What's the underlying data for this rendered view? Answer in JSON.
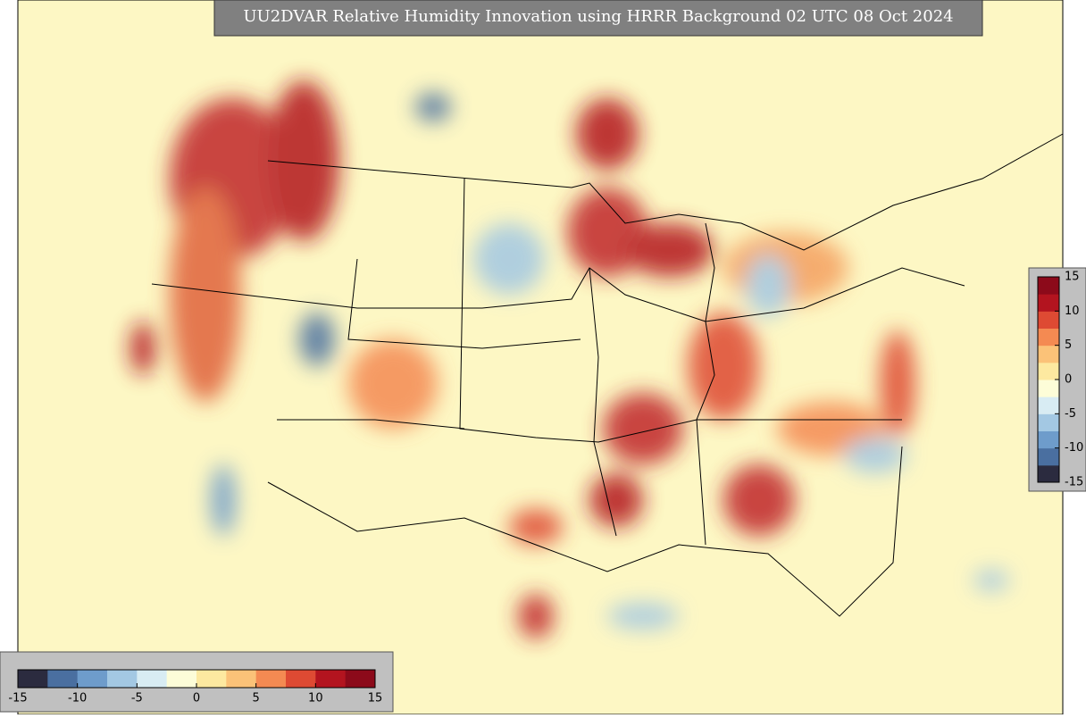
{
  "title": "UU2DVAR Relative Humidity Innovation using HRRR Background 02 UTC 08 Oct 2024",
  "colors": [
    "#2b2b3f",
    "#4a6fa0",
    "#6e9ccb",
    "#a3c8e3",
    "#d8ecf3",
    "#fdfdd8",
    "#fde9a0",
    "#fbc278",
    "#f48a52",
    "#de4a33",
    "#b3141f",
    "#8c0a1a"
  ],
  "vertical_colorbar": {
    "lim": [
      -15,
      15
    ],
    "ticks": [
      15,
      10,
      5,
      0,
      -5,
      -10,
      -15
    ]
  },
  "horizontal_colorbar": {
    "lim": [
      -15,
      15
    ],
    "ticks": [
      -15,
      -10,
      -5,
      0,
      5,
      10,
      15
    ]
  }
}
